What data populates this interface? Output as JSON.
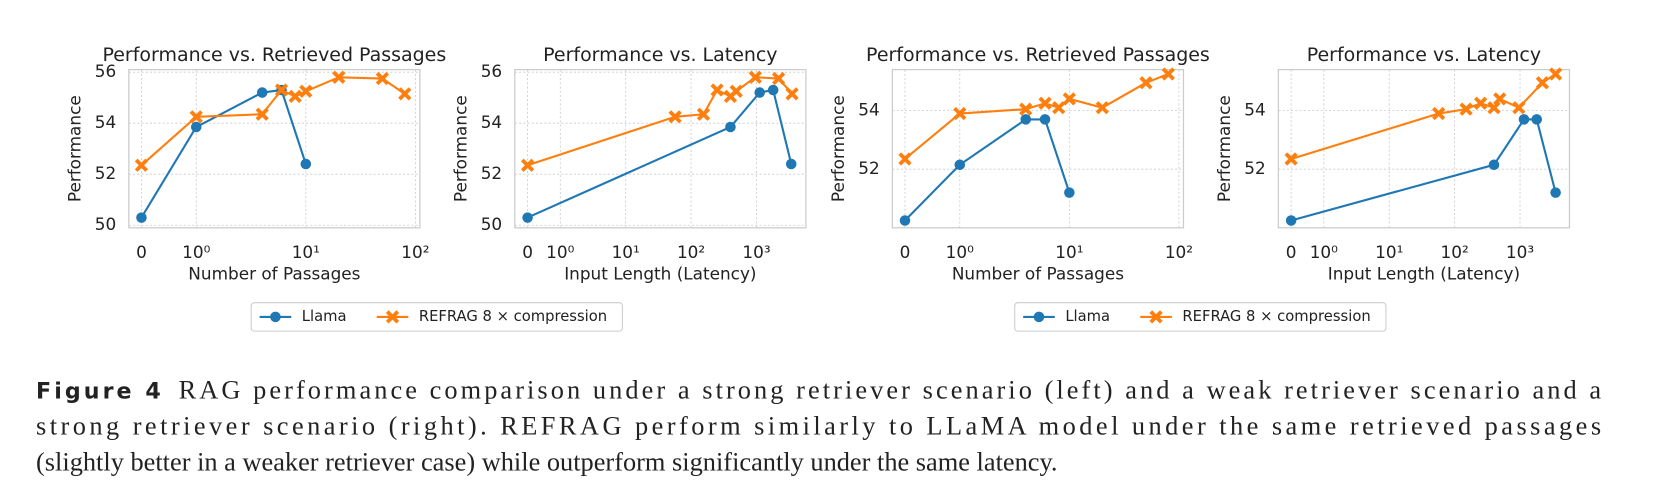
{
  "chart_data": [
    {
      "type": "line",
      "title": "Performance vs. Retrieved Passages",
      "xlabel": "Number of Passages",
      "ylabel": "Performance",
      "xscale": "symlog",
      "xlim": [
        -0.23,
        110
      ],
      "xticks": [
        0,
        {
          "value": 1,
          "label": "10⁰"
        },
        {
          "value": 10,
          "label": "10¹"
        },
        {
          "value": 100,
          "label": "10²"
        }
      ],
      "ylim": [
        49.9,
        56.1
      ],
      "yticks": [
        50,
        52,
        54,
        56
      ],
      "grid": true,
      "legend": true,
      "series": [
        {
          "name": "Llama",
          "color": "#1f77b4",
          "marker": "circle",
          "x": [
            0,
            1,
            4,
            6,
            10
          ],
          "values": [
            50.3,
            53.85,
            55.2,
            55.3,
            52.4
          ]
        },
        {
          "name": "REFRAG 8 × compression",
          "color": "#ff7f0e",
          "marker": "x",
          "x": [
            0,
            1,
            4,
            6,
            8,
            10,
            20,
            50,
            80
          ],
          "values": [
            52.35,
            54.25,
            54.35,
            55.3,
            55.05,
            55.25,
            55.8,
            55.75,
            55.15
          ]
        }
      ]
    },
    {
      "type": "line",
      "title": "Performance vs. Latency",
      "xlabel": "Input Length (Latency)",
      "ylabel": "Performance",
      "xscale": "symlog",
      "xlim": [
        -0.39,
        5700
      ],
      "xticks": [
        0,
        {
          "value": 1,
          "label": "10⁰"
        },
        {
          "value": 10,
          "label": "10¹"
        },
        {
          "value": 100,
          "label": "10²"
        },
        {
          "value": 1000,
          "label": "10³"
        }
      ],
      "ylim": [
        49.9,
        56.1
      ],
      "yticks": [
        50,
        52,
        54,
        56
      ],
      "grid": true,
      "legend": false,
      "series": [
        {
          "name": "Llama",
          "color": "#1f77b4",
          "marker": "circle",
          "x": [
            0,
            400,
            1120,
            1800,
            3400
          ],
          "values": [
            50.3,
            53.85,
            55.2,
            55.3,
            52.4
          ]
        },
        {
          "name": "REFRAG 8 × compression",
          "color": "#ff7f0e",
          "marker": "x",
          "x": [
            0,
            57,
            155,
            250,
            400,
            490,
            960,
            2180,
            3500
          ],
          "values": [
            52.35,
            54.25,
            54.35,
            55.3,
            55.05,
            55.25,
            55.8,
            55.75,
            55.15
          ]
        }
      ]
    },
    {
      "type": "line",
      "title": "Performance vs. Retrieved Passages",
      "xlabel": "Number of Passages",
      "ylabel": "Performance",
      "xscale": "symlog",
      "xlim": [
        -0.23,
        110
      ],
      "xticks": [
        0,
        {
          "value": 1,
          "label": "10⁰"
        },
        {
          "value": 10,
          "label": "10¹"
        },
        {
          "value": 100,
          "label": "10²"
        }
      ],
      "ylim": [
        50,
        55.4
      ],
      "yticks": [
        52,
        54
      ],
      "grid": true,
      "legend": true,
      "series": [
        {
          "name": "Llama",
          "color": "#1f77b4",
          "marker": "circle",
          "x": [
            0,
            1,
            4,
            6,
            10
          ],
          "values": [
            50.25,
            52.15,
            53.7,
            53.7,
            51.2
          ]
        },
        {
          "name": "REFRAG 8 × compression",
          "color": "#ff7f0e",
          "marker": "x",
          "x": [
            0,
            1,
            4,
            6,
            8,
            10,
            20,
            50,
            80
          ],
          "values": [
            52.35,
            53.9,
            54.05,
            54.25,
            54.1,
            54.4,
            54.1,
            54.95,
            55.25
          ]
        }
      ]
    },
    {
      "type": "line",
      "title": "Performance vs. Latency",
      "xlabel": "Input Length (Latency)",
      "ylabel": "Performance",
      "xscale": "symlog",
      "xlim": [
        -0.39,
        5700
      ],
      "xticks": [
        0,
        {
          "value": 1,
          "label": "10⁰"
        },
        {
          "value": 10,
          "label": "10¹"
        },
        {
          "value": 100,
          "label": "10²"
        },
        {
          "value": 1000,
          "label": "10³"
        }
      ],
      "ylim": [
        50,
        55.4
      ],
      "yticks": [
        52,
        54
      ],
      "grid": true,
      "legend": false,
      "series": [
        {
          "name": "Llama",
          "color": "#1f77b4",
          "marker": "circle",
          "x": [
            0,
            400,
            1150,
            1800,
            3500
          ],
          "values": [
            50.25,
            52.15,
            53.7,
            53.7,
            51.2
          ]
        },
        {
          "name": "REFRAG 8 × compression",
          "color": "#ff7f0e",
          "marker": "x",
          "x": [
            0,
            57,
            150,
            250,
            400,
            490,
            960,
            2200,
            3500
          ],
          "values": [
            52.35,
            53.9,
            54.05,
            54.25,
            54.1,
            54.4,
            54.1,
            54.95,
            55.25
          ]
        }
      ]
    }
  ],
  "caption": {
    "label": "Figure 4",
    "lines": [
      "RAG performance comparison under a strong retriever scenario (left) and a weak retriever scenario and a",
      "strong retriever scenario (right). REFRAG perform similarly to LLaMA model under the same retrieved passages",
      "(slightly better in a weaker retriever case) while outperform significantly under the same latency."
    ]
  }
}
